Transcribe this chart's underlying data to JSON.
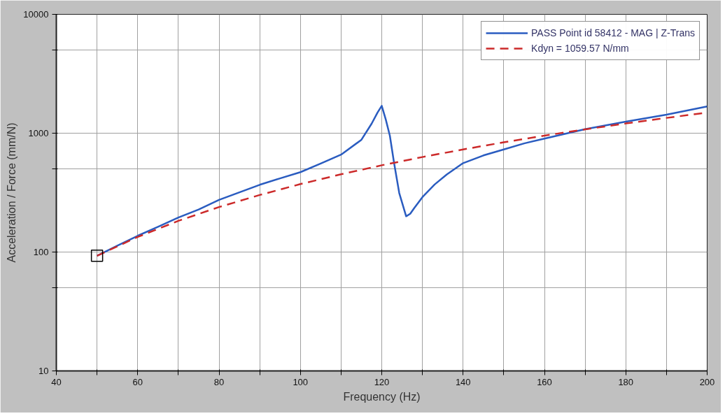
{
  "chart_data": {
    "type": "line",
    "xlabel": "Frequency (Hz)",
    "ylabel": "Acceleration / Force (mm/N)",
    "log": "y",
    "grid": true,
    "legend": "top right",
    "xlim": [
      40,
      200
    ],
    "ylim": [
      10,
      10000
    ],
    "xticks": [
      40,
      {
        "value": 50,
        "label": null
      },
      60,
      {
        "value": 70,
        "label": null
      },
      80,
      {
        "value": 90,
        "label": null
      },
      100,
      {
        "value": 110,
        "label": null
      },
      120,
      {
        "value": 130,
        "label": null
      },
      140,
      {
        "value": 150,
        "label": null
      },
      160,
      {
        "value": 170,
        "label": null
      },
      180,
      {
        "value": 190,
        "label": null
      },
      200
    ],
    "yticks": [
      10,
      {
        "value": 50,
        "label": null
      },
      100,
      {
        "value": 500,
        "label": null
      },
      1000,
      {
        "value": 5000,
        "label": null
      },
      10000
    ],
    "series": [
      {
        "name": "PASS Point id 58412 - MAG | Z-Trans",
        "color": "#2a5cc0",
        "line_style": "solid",
        "x": [
          50,
          55,
          60,
          65,
          70,
          75,
          80,
          85,
          90,
          95,
          100,
          105,
          110,
          115,
          117.5,
          119,
          120,
          121,
          122,
          123,
          124.3,
          126,
          127,
          128,
          130,
          133,
          136,
          140,
          145,
          150,
          155,
          160,
          170,
          180,
          190,
          200
        ],
        "values": [
          93,
          113,
          137,
          163,
          195,
          228,
          275,
          318,
          368,
          417,
          470,
          555,
          660,
          880,
          1200,
          1500,
          1700,
          1300,
          950,
          570,
          314,
          200,
          210,
          235,
          290,
          370,
          450,
          560,
          650,
          730,
          820,
          900,
          1080,
          1250,
          1430,
          1680
        ]
      },
      {
        "name": "Kdyn = 1059.57 N/mm",
        "color": "#cc2a2a",
        "line_style": "dashed",
        "x": [
          50,
          60,
          70,
          80,
          90,
          100,
          110,
          120,
          130,
          140,
          150,
          160,
          170,
          180,
          190,
          200
        ],
        "values": [
          93,
          134,
          183,
          239,
          302,
          373,
          451,
          537,
          630,
          730,
          838,
          954,
          1077,
          1207,
          1345,
          1490
        ]
      },
      {
        "type": "scatter",
        "marker": "square",
        "color": "#000000",
        "x": [
          50
        ],
        "values": [
          93
        ]
      }
    ]
  }
}
